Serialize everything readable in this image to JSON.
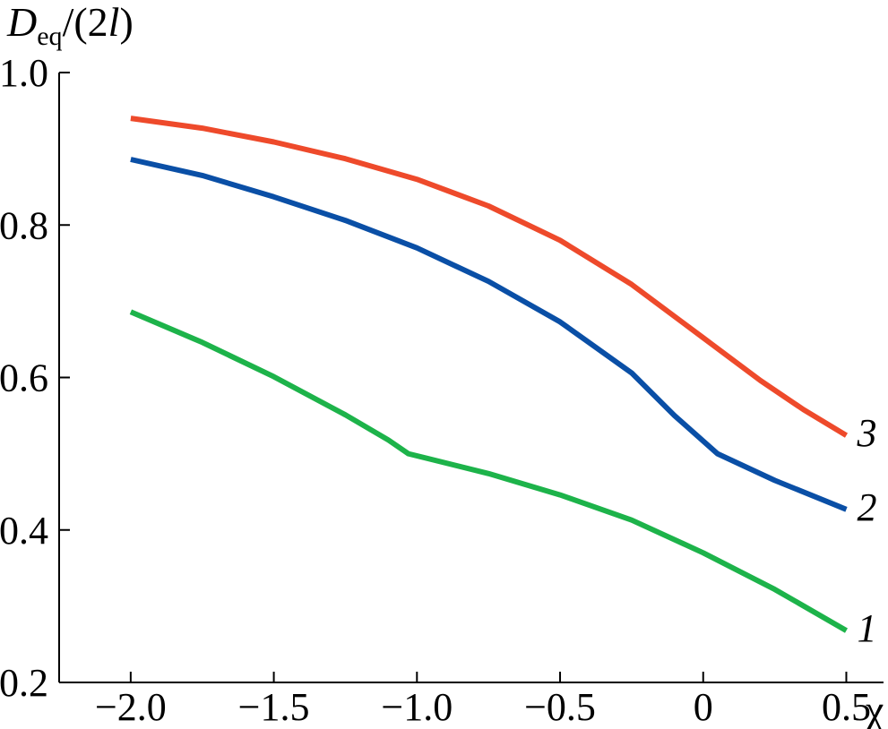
{
  "chart_data": {
    "type": "line",
    "title": "",
    "ylabel": {
      "main": "D",
      "sub": "eq",
      "rest": "/(2",
      "italic": "l",
      "close": ")"
    },
    "xlabel": "χ",
    "xlim": [
      -2.25,
      0.63
    ],
    "ylim": [
      0.2,
      1.0
    ],
    "x_ticks": [
      -2.0,
      -1.5,
      -1.0,
      -0.5,
      0,
      0.5
    ],
    "x_tick_labels": [
      "−2.0",
      "−1.5",
      "−1.0",
      "−0.5",
      "0",
      "0.5"
    ],
    "y_ticks": [
      0.2,
      0.4,
      0.6,
      0.8,
      1.0
    ],
    "y_tick_labels": [
      "0.2",
      "0.4",
      "0.6",
      "0.8",
      "1.0"
    ],
    "grid": false,
    "series": [
      {
        "name": "1",
        "color": "#1db34a",
        "points": [
          [
            -2.0,
            0.686
          ],
          [
            -1.75,
            0.646
          ],
          [
            -1.5,
            0.601
          ],
          [
            -1.25,
            0.551
          ],
          [
            -1.1,
            0.518
          ],
          [
            -1.03,
            0.5
          ],
          [
            -0.75,
            0.474
          ],
          [
            -0.5,
            0.446
          ],
          [
            -0.25,
            0.413
          ],
          [
            0.0,
            0.37
          ],
          [
            0.25,
            0.322
          ],
          [
            0.5,
            0.268
          ]
        ]
      },
      {
        "name": "2",
        "color": "#0a4fa6",
        "points": [
          [
            -2.0,
            0.886
          ],
          [
            -1.75,
            0.865
          ],
          [
            -1.5,
            0.837
          ],
          [
            -1.25,
            0.806
          ],
          [
            -1.0,
            0.77
          ],
          [
            -0.75,
            0.726
          ],
          [
            -0.5,
            0.673
          ],
          [
            -0.25,
            0.606
          ],
          [
            -0.1,
            0.55
          ],
          [
            0.05,
            0.5
          ],
          [
            0.25,
            0.465
          ],
          [
            0.5,
            0.427
          ]
        ]
      },
      {
        "name": "3",
        "color": "#ee4a2b",
        "points": [
          [
            -2.0,
            0.94
          ],
          [
            -1.75,
            0.927
          ],
          [
            -1.5,
            0.909
          ],
          [
            -1.25,
            0.887
          ],
          [
            -1.0,
            0.86
          ],
          [
            -0.75,
            0.825
          ],
          [
            -0.5,
            0.78
          ],
          [
            -0.25,
            0.722
          ],
          [
            0.0,
            0.652
          ],
          [
            0.2,
            0.596
          ],
          [
            0.35,
            0.558
          ],
          [
            0.5,
            0.524
          ]
        ]
      }
    ]
  }
}
